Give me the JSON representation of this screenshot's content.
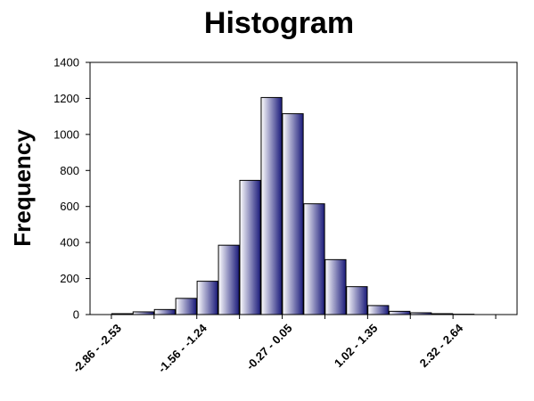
{
  "chart_data": {
    "type": "bar",
    "title": "Histogram",
    "xlabel": "",
    "ylabel": "Frequency",
    "ylim": [
      0,
      1400
    ],
    "yticks": [
      0,
      200,
      400,
      600,
      800,
      1000,
      1200,
      1400
    ],
    "grid": false,
    "legend": "none",
    "bar_count": 20,
    "values": [
      0,
      5,
      15,
      28,
      90,
      185,
      385,
      745,
      1205,
      1115,
      615,
      305,
      155,
      50,
      18,
      10,
      5,
      2,
      0,
      0
    ],
    "labeled_ticks": [
      {
        "bar_index": 1,
        "label": "-2.86 - -2.53"
      },
      {
        "bar_index": 5,
        "label": "-1.56 - -1.24"
      },
      {
        "bar_index": 9,
        "label": "-0.27 - 0.05"
      },
      {
        "bar_index": 13,
        "label": "1.02 - 1.35"
      },
      {
        "bar_index": 17,
        "label": "2.32 - 2.64"
      }
    ],
    "bar_color_light": "#ffffff",
    "bar_color_dark": "#1a1a7a",
    "bar_stroke": "#000000"
  }
}
